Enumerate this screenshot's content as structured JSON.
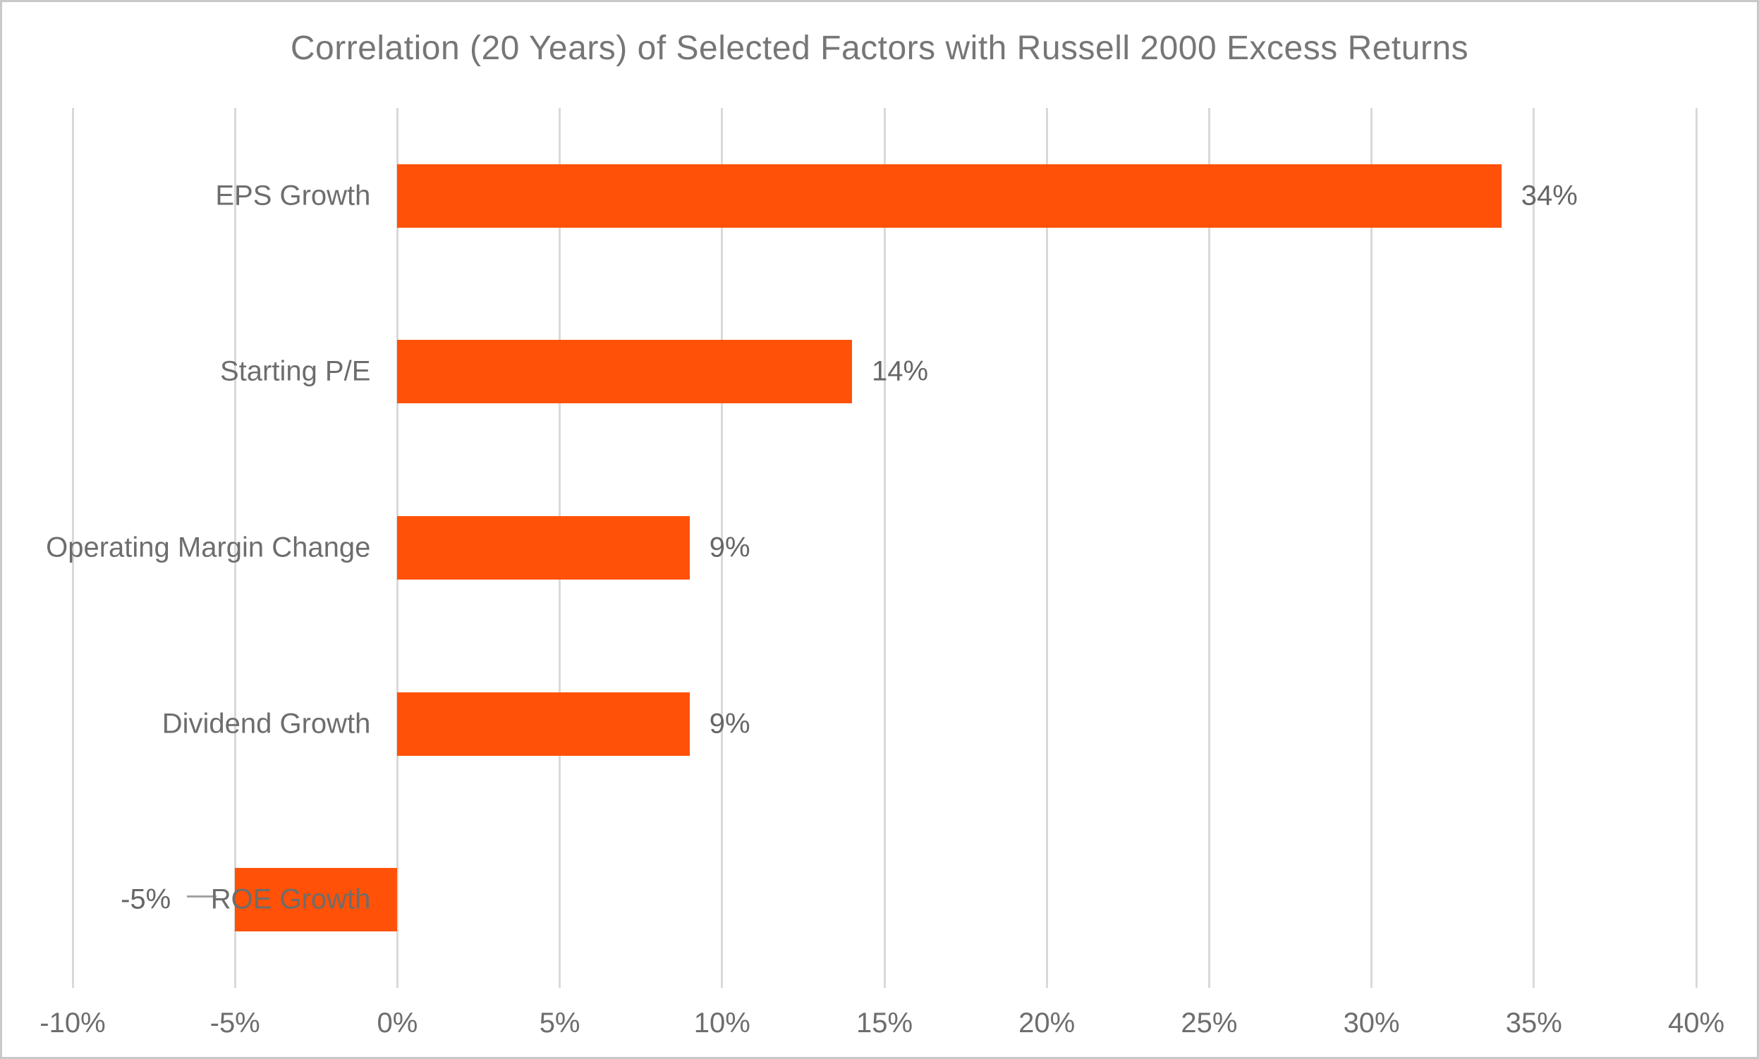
{
  "chart_data": {
    "type": "bar",
    "orientation": "horizontal",
    "title": "Correlation (20 Years) of Selected Factors with Russell 2000 Excess Returns",
    "categories": [
      "EPS Growth",
      "Starting P/E",
      "Operating Margin Change",
      "Dividend Growth",
      "ROE Growth"
    ],
    "values": [
      34,
      14,
      9,
      9,
      -5
    ],
    "value_labels": [
      "34%",
      "14%",
      "9%",
      "9%",
      "-5%"
    ],
    "xlim": [
      -10,
      40
    ],
    "x_ticks": [
      -10,
      -5,
      0,
      5,
      10,
      15,
      20,
      25,
      30,
      35,
      40
    ],
    "x_tick_labels": [
      "-10%",
      "-5%",
      "0%",
      "5%",
      "10%",
      "15%",
      "20%",
      "25%",
      "30%",
      "35%",
      "40%"
    ],
    "grid": "vertical-only",
    "legend": "none",
    "negative_label_has_leader_line": true,
    "colors": {
      "bar": "#ff5107",
      "title_text": "#767676",
      "label_text": "#6d6d6d",
      "gridline": "#d9d9d9",
      "leader_line": "#a3a3a3",
      "background": "#ffffff",
      "frame_border": "#c9c9c9"
    }
  }
}
